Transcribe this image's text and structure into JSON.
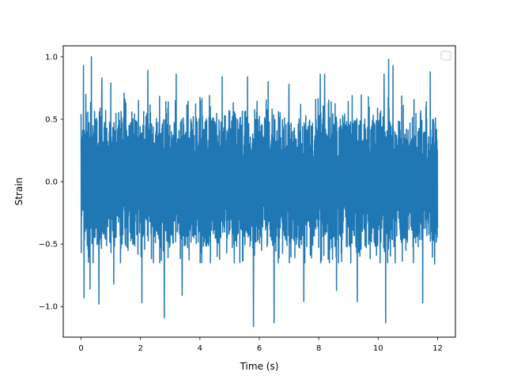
{
  "chart_data": {
    "type": "line",
    "title": "",
    "xlabel": "Time (s)",
    "ylabel": "Strain",
    "xlim": [
      -0.6,
      12.6
    ],
    "ylim": [
      -1.245,
      1.088
    ],
    "x_ticks": [
      0,
      2,
      4,
      6,
      8,
      10,
      12
    ],
    "x_tick_labels": [
      "0",
      "2",
      "4",
      "6",
      "8",
      "10",
      "12"
    ],
    "y_ticks": [
      -1.0,
      -0.5,
      0.0,
      0.5,
      1.0
    ],
    "y_tick_labels": [
      "−1.0",
      "−0.5",
      "0.0",
      "0.5",
      "1.0"
    ],
    "grid": false,
    "legend": {
      "placement": "top-right",
      "entries": []
    },
    "series": [
      {
        "color": "#1f77b4",
        "x_start": 0,
        "x_end": 12,
        "samples": 1800,
        "typical_range": [
          -0.5,
          0.5
        ],
        "peaks_high": [
          [
            0.08,
            0.93
          ],
          [
            0.35,
            1.0
          ],
          [
            0.7,
            0.83
          ],
          [
            1.0,
            0.79
          ],
          [
            1.45,
            0.71
          ],
          [
            2.25,
            0.89
          ],
          [
            3.2,
            0.86
          ],
          [
            4.75,
            0.84
          ],
          [
            5.6,
            0.84
          ],
          [
            6.3,
            0.8
          ],
          [
            7.0,
            0.78
          ],
          [
            8.05,
            0.86
          ],
          [
            8.2,
            0.86
          ],
          [
            10.2,
            0.86
          ],
          [
            10.35,
            0.98
          ],
          [
            10.5,
            0.93
          ],
          [
            11.75,
            0.88
          ]
        ],
        "peaks_low": [
          [
            0.1,
            -0.93
          ],
          [
            0.3,
            -0.86
          ],
          [
            0.6,
            -0.98
          ],
          [
            1.1,
            -0.82
          ],
          [
            2.05,
            -0.97
          ],
          [
            2.8,
            -1.09
          ],
          [
            3.4,
            -0.91
          ],
          [
            5.8,
            -1.16
          ],
          [
            6.5,
            -1.13
          ],
          [
            7.5,
            -0.96
          ],
          [
            8.6,
            -0.87
          ],
          [
            9.3,
            -0.96
          ],
          [
            10.25,
            -1.13
          ],
          [
            11.5,
            -0.97
          ],
          [
            11.9,
            -0.66
          ]
        ]
      }
    ]
  }
}
